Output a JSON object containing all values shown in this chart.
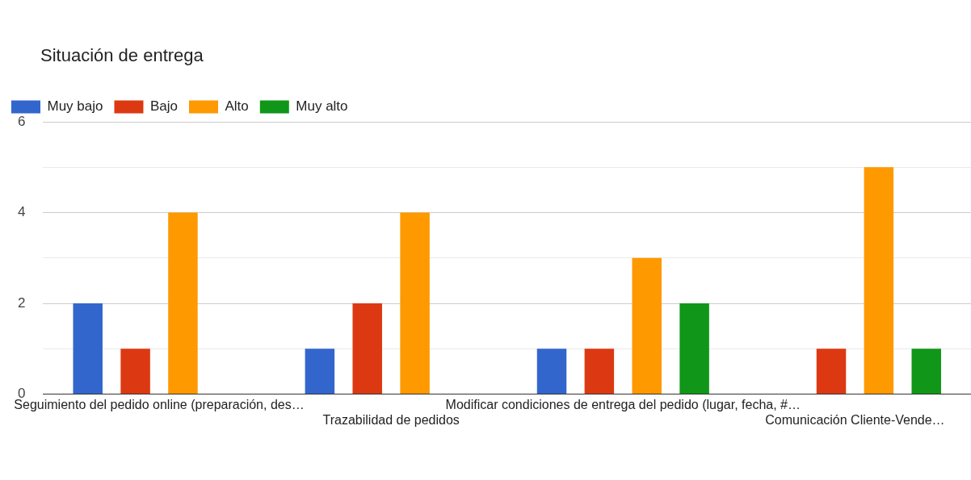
{
  "chart_data": {
    "type": "bar",
    "title": "Situación de entrega",
    "categories": [
      "Seguimiento del pedido online (preparación, des…",
      "Trazabilidad de pedidos",
      "Modificar condiciones de entrega del pedido (lugar, fecha, #…",
      "Comunicación Cliente-Vende…"
    ],
    "series": [
      {
        "name": "Muy bajo",
        "color": "#3366cc",
        "values": [
          2,
          1,
          1,
          0
        ]
      },
      {
        "name": "Bajo",
        "color": "#dc3912",
        "values": [
          1,
          2,
          1,
          1
        ]
      },
      {
        "name": "Alto",
        "color": "#ff9900",
        "values": [
          4,
          4,
          3,
          5
        ]
      },
      {
        "name": "Muy alto",
        "color": "#109618",
        "values": [
          0,
          0,
          2,
          1
        ]
      }
    ],
    "ylim": [
      0,
      6
    ],
    "yticks": [
      0,
      {
        "value": 1,
        "label": null
      },
      2,
      {
        "value": 3,
        "label": null
      },
      4,
      {
        "value": 5,
        "label": null
      },
      6
    ],
    "grid": "y",
    "legend": "top left"
  }
}
